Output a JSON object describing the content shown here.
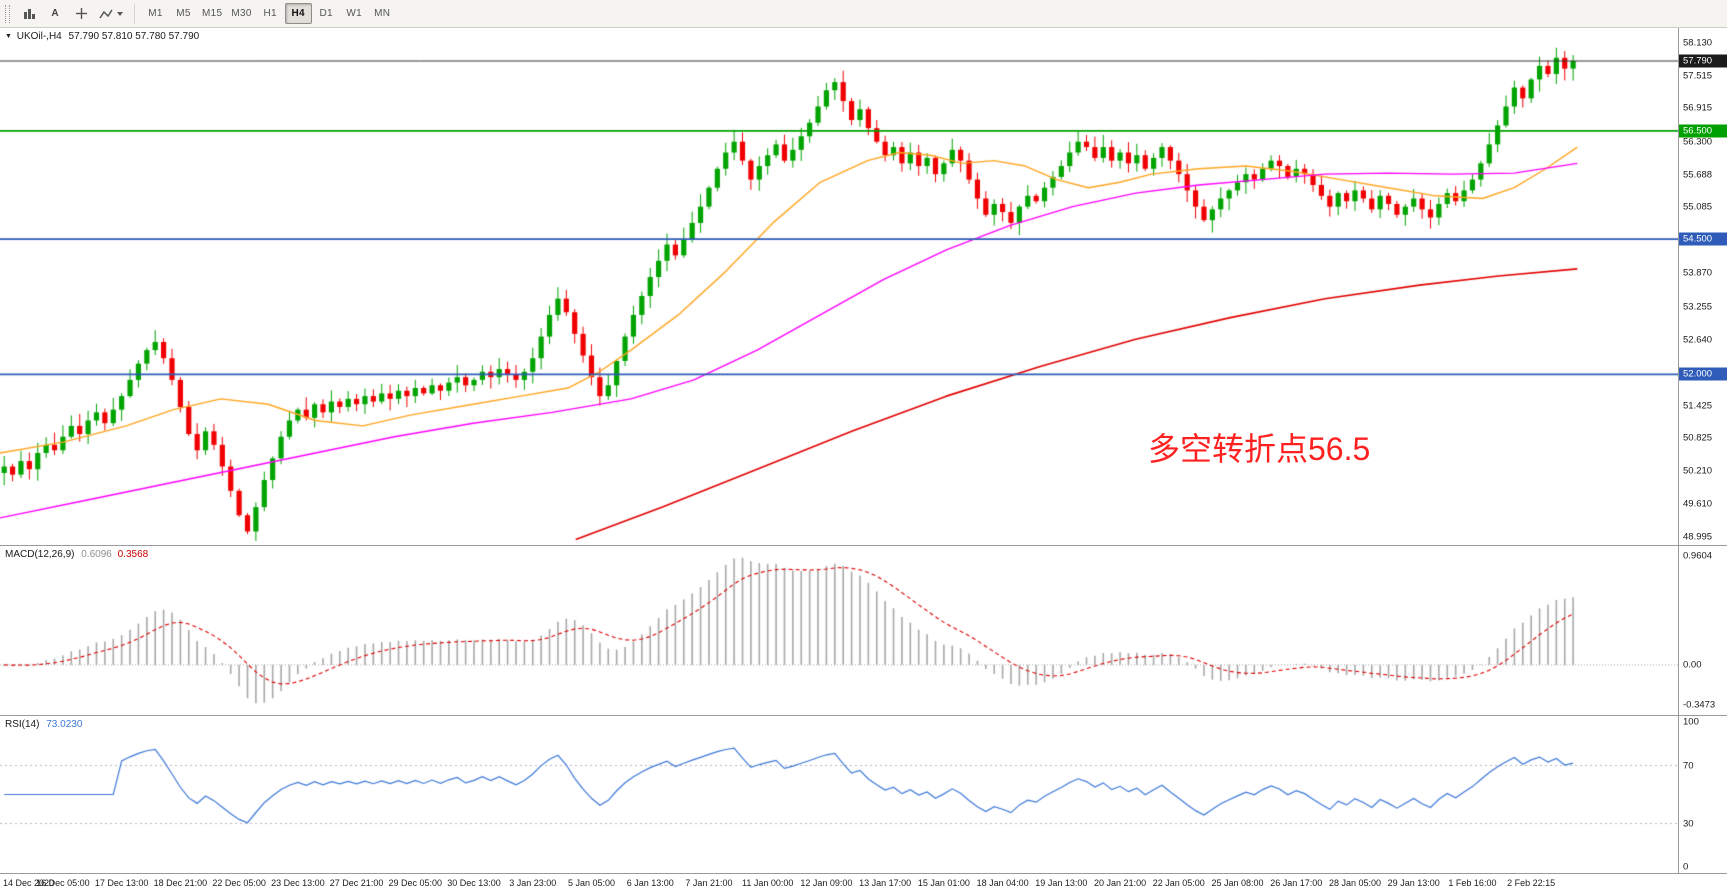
{
  "toolbar": {
    "text_tool_label": "A",
    "timeframes": [
      "M1",
      "M5",
      "M15",
      "M30",
      "H1",
      "H4",
      "D1",
      "W1",
      "MN"
    ],
    "active_timeframe": "H4"
  },
  "chart": {
    "symbol_label": "UKOil-,H4",
    "quote": "57.790 57.810 57.780 57.790",
    "annotation_text": "多空转折点56.5",
    "annotation_color": "#ff2020"
  },
  "chart_data": {
    "type": "candlestick",
    "symbol": "UKOil",
    "timeframe": "H4",
    "bull_color": "#00a400",
    "bear_color": "#f00000",
    "price_axis_bounds": {
      "max": 58.4,
      "min": 48.85
    },
    "closes": [
      50.3,
      50.15,
      50.4,
      50.25,
      50.55,
      50.7,
      50.6,
      50.85,
      51.05,
      50.9,
      51.15,
      51.3,
      51.1,
      51.35,
      51.6,
      51.9,
      52.2,
      52.45,
      52.6,
      52.3,
      51.9,
      51.4,
      50.9,
      50.6,
      50.95,
      50.7,
      50.3,
      49.85,
      49.4,
      49.1,
      49.55,
      50.05,
      50.45,
      50.85,
      51.15,
      51.35,
      51.2,
      51.45,
      51.3,
      51.5,
      51.4,
      51.55,
      51.45,
      51.6,
      51.5,
      51.65,
      51.55,
      51.7,
      51.6,
      51.75,
      51.65,
      51.8,
      51.7,
      51.85,
      51.95,
      51.8,
      51.9,
      52.05,
      51.95,
      52.1,
      52.0,
      51.9,
      52.05,
      52.3,
      52.7,
      53.1,
      53.4,
      53.15,
      52.75,
      52.35,
      51.95,
      51.6,
      51.8,
      52.25,
      52.7,
      53.1,
      53.45,
      53.8,
      54.1,
      54.4,
      54.2,
      54.5,
      54.8,
      55.1,
      55.45,
      55.8,
      56.1,
      56.3,
      55.95,
      55.6,
      55.85,
      56.05,
      56.25,
      55.95,
      56.15,
      56.4,
      56.65,
      56.95,
      57.25,
      57.4,
      57.05,
      56.7,
      56.9,
      56.55,
      56.3,
      56.05,
      56.2,
      55.9,
      56.1,
      55.85,
      56.0,
      55.7,
      55.9,
      56.15,
      55.95,
      55.6,
      55.25,
      54.95,
      55.15,
      55.0,
      54.8,
      55.1,
      55.3,
      55.2,
      55.45,
      55.65,
      55.85,
      56.1,
      56.3,
      56.2,
      56.0,
      56.2,
      55.95,
      56.1,
      55.9,
      56.05,
      55.8,
      56.0,
      56.2,
      55.95,
      55.7,
      55.4,
      55.1,
      54.85,
      55.05,
      55.25,
      55.4,
      55.55,
      55.7,
      55.6,
      55.8,
      55.95,
      55.85,
      55.65,
      55.8,
      55.7,
      55.5,
      55.3,
      55.1,
      55.35,
      55.2,
      55.4,
      55.25,
      55.05,
      55.3,
      55.15,
      54.95,
      55.1,
      55.25,
      55.05,
      54.9,
      55.15,
      55.35,
      55.2,
      55.4,
      55.6,
      55.9,
      56.25,
      56.6,
      56.95,
      57.3,
      57.1,
      57.45,
      57.7,
      57.55,
      57.85,
      57.65,
      57.79
    ],
    "price_ticks": [
      "58.130",
      "57.515",
      "56.915",
      "56.300",
      "55.688",
      "55.085",
      "53.870",
      "53.255",
      "52.640",
      "51.425",
      "50.825",
      "50.210",
      "49.610",
      "48.995"
    ],
    "price_badges": [
      {
        "t": "57.790",
        "bg": "#1b1b1b"
      },
      {
        "t": "56.500",
        "bg": "#00a000"
      },
      {
        "t": "54.500",
        "bg": "#2e5cb8"
      },
      {
        "t": "52.000",
        "bg": "#2e5cb8"
      }
    ],
    "levels": [
      {
        "price": 56.5,
        "color": "#00a000"
      },
      {
        "price": 54.5,
        "color": "#2e5cb8"
      },
      {
        "price": 52.0,
        "color": "#2e5cb8"
      }
    ],
    "current_price": 57.79,
    "current_price_color": "#333333",
    "moving_averages": [
      {
        "name": "ma-fast-orange",
        "color": "#ffa520",
        "width": 1.4,
        "points": [
          [
            0.0,
            50.55
          ],
          [
            0.04,
            50.75
          ],
          [
            0.08,
            51.05
          ],
          [
            0.11,
            51.35
          ],
          [
            0.14,
            51.55
          ],
          [
            0.17,
            51.45
          ],
          [
            0.2,
            51.15
          ],
          [
            0.23,
            51.05
          ],
          [
            0.26,
            51.25
          ],
          [
            0.3,
            51.45
          ],
          [
            0.33,
            51.6
          ],
          [
            0.36,
            51.75
          ],
          [
            0.38,
            52.05
          ],
          [
            0.4,
            52.45
          ],
          [
            0.43,
            53.1
          ],
          [
            0.46,
            53.9
          ],
          [
            0.49,
            54.8
          ],
          [
            0.52,
            55.55
          ],
          [
            0.55,
            55.95
          ],
          [
            0.57,
            56.1
          ],
          [
            0.59,
            56.05
          ],
          [
            0.61,
            55.9
          ],
          [
            0.63,
            55.95
          ],
          [
            0.65,
            55.85
          ],
          [
            0.67,
            55.6
          ],
          [
            0.69,
            55.45
          ],
          [
            0.71,
            55.55
          ],
          [
            0.73,
            55.7
          ],
          [
            0.76,
            55.8
          ],
          [
            0.79,
            55.85
          ],
          [
            0.82,
            55.75
          ],
          [
            0.85,
            55.6
          ],
          [
            0.88,
            55.45
          ],
          [
            0.91,
            55.3
          ],
          [
            0.94,
            55.25
          ],
          [
            0.96,
            55.45
          ],
          [
            0.98,
            55.8
          ],
          [
            1.0,
            56.2
          ]
        ]
      },
      {
        "name": "ma-mid-magenta",
        "color": "#ff00ff",
        "width": 1.4,
        "points": [
          [
            0.0,
            49.35
          ],
          [
            0.05,
            49.65
          ],
          [
            0.1,
            49.95
          ],
          [
            0.15,
            50.25
          ],
          [
            0.2,
            50.55
          ],
          [
            0.25,
            50.85
          ],
          [
            0.3,
            51.1
          ],
          [
            0.35,
            51.3
          ],
          [
            0.4,
            51.55
          ],
          [
            0.44,
            51.9
          ],
          [
            0.48,
            52.45
          ],
          [
            0.52,
            53.1
          ],
          [
            0.56,
            53.75
          ],
          [
            0.6,
            54.3
          ],
          [
            0.64,
            54.75
          ],
          [
            0.68,
            55.1
          ],
          [
            0.72,
            55.35
          ],
          [
            0.76,
            55.5
          ],
          [
            0.8,
            55.6
          ],
          [
            0.84,
            55.7
          ],
          [
            0.88,
            55.72
          ],
          [
            0.92,
            55.7
          ],
          [
            0.96,
            55.72
          ],
          [
            1.0,
            55.9
          ]
        ]
      },
      {
        "name": "ma-slow-red",
        "color": "#e10000",
        "width": 1.6,
        "points": [
          [
            0.365,
            48.95
          ],
          [
            0.42,
            49.55
          ],
          [
            0.48,
            50.25
          ],
          [
            0.54,
            50.95
          ],
          [
            0.6,
            51.6
          ],
          [
            0.66,
            52.15
          ],
          [
            0.72,
            52.65
          ],
          [
            0.78,
            53.05
          ],
          [
            0.84,
            53.4
          ],
          [
            0.9,
            53.65
          ],
          [
            0.95,
            53.82
          ],
          [
            1.0,
            53.95
          ]
        ]
      }
    ],
    "time_labels": [
      "14 Dec 2020",
      "16 Dec 05:00",
      "17 Dec 13:00",
      "18 Dec 21:00",
      "22 Dec 05:00",
      "23 Dec 13:00",
      "27 Dec 21:00",
      "29 Dec 05:00",
      "30 Dec 13:00",
      "3 Jan 23:00",
      "5 Jan 05:00",
      "6 Jan 13:00",
      "7 Jan 21:00",
      "11 Jan 00:00",
      "12 Jan 09:00",
      "13 Jan 17:00",
      "15 Jan 01:00",
      "18 Jan 04:00",
      "19 Jan 13:00",
      "20 Jan 21:00",
      "22 Jan 05:00",
      "25 Jan 08:00",
      "26 Jan 17:00",
      "28 Jan 05:00",
      "29 Jan 13:00",
      "1 Feb 16:00",
      "2 Feb 22:15"
    ],
    "label_every_n_candles": 7,
    "indicators": {
      "macd": {
        "label": "MACD(12,26,9)",
        "value_main": "0.6096",
        "value_signal": "0.3568",
        "fast": 12,
        "slow": 26,
        "signal": 9,
        "axis_max": "0.9604",
        "axis_zero": "0.00",
        "axis_min": "-0.3473",
        "histogram_color": "#a8a8a8",
        "signal_color": "#dd0000"
      },
      "rsi": {
        "label": "RSI(14)",
        "value": "73.0230",
        "period": 14,
        "axis_labels": [
          "100",
          "70",
          "30",
          "0"
        ],
        "levels": [
          70,
          30
        ],
        "line_color": "#3c78d8",
        "level_color": "#b8b8b8"
      }
    }
  }
}
